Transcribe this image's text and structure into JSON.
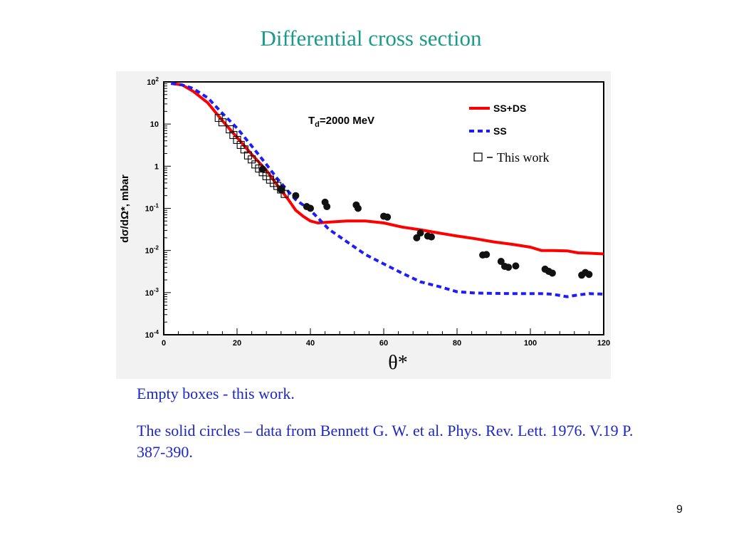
{
  "slide": {
    "title": "Differential  cross section",
    "caption_1": "Empty boxes  - this work.",
    "caption_2": "The solid circles – data from  Bennett G. W. et al. Phys. Rev. Lett. 1976. V.19   P. 387-390.",
    "page_number": "9"
  },
  "chart_data": {
    "type": "scatter",
    "annotation": "T_d=2000 MeV",
    "annotation_main": "T",
    "annotation_sub": "d",
    "annotation_rest": "=2000 MeV",
    "xlabel": "θ*",
    "ylabel": "dσ/dΩ*, mbar",
    "xlim": [
      0,
      120
    ],
    "ylim": [
      0.0001,
      100
    ],
    "y_scale": "log",
    "x_ticks": [
      "0",
      "20",
      "40",
      "60",
      "80",
      "100",
      "120"
    ],
    "y_ticks": [
      {
        "value": 100,
        "base": "10",
        "exp": "2"
      },
      {
        "value": 10,
        "base": "10",
        "exp": ""
      },
      {
        "value": 1,
        "base": "1",
        "exp": ""
      },
      {
        "value": 0.1,
        "base": "10",
        "exp": "-1"
      },
      {
        "value": 0.01,
        "base": "10",
        "exp": "-2"
      },
      {
        "value": 0.001,
        "base": "10",
        "exp": "-3"
      },
      {
        "value": 0.0001,
        "base": "10",
        "exp": "-4"
      }
    ],
    "legend_position": "top-right",
    "colors": {
      "ss_ds": "#ff0000",
      "ss": "#1c1cff",
      "points": "#111111"
    },
    "series": [
      {
        "name": "SS+DS",
        "style": "solid-line",
        "x": [
          2,
          5,
          8,
          12,
          16,
          20,
          24,
          28,
          31,
          34,
          36,
          38,
          40,
          42,
          45,
          50,
          55,
          60,
          65,
          70,
          75,
          80,
          85,
          90,
          95,
          100,
          103,
          106,
          110,
          113,
          116,
          120
        ],
        "y": [
          92,
          85,
          60,
          32,
          12,
          4.8,
          1.9,
          0.8,
          0.35,
          0.16,
          0.09,
          0.065,
          0.05,
          0.045,
          0.047,
          0.05,
          0.05,
          0.045,
          0.036,
          0.031,
          0.026,
          0.022,
          0.019,
          0.016,
          0.014,
          0.012,
          0.01,
          0.01,
          0.0098,
          0.0088,
          0.0086,
          0.0083
        ]
      },
      {
        "name": "SS",
        "style": "dashed-line",
        "x": [
          2,
          5,
          8,
          12,
          16,
          20,
          24,
          28,
          31,
          34,
          36,
          40,
          42,
          45,
          50,
          55,
          60,
          65,
          70,
          75,
          80,
          85,
          90,
          95,
          100,
          103,
          106,
          110,
          113,
          116,
          120
        ],
        "y": [
          92,
          85,
          70,
          42,
          18,
          8,
          3,
          1.1,
          0.5,
          0.25,
          0.16,
          0.09,
          0.06,
          0.032,
          0.016,
          0.008,
          0.0048,
          0.0029,
          0.0018,
          0.0014,
          0.00105,
          0.00098,
          0.00096,
          0.00095,
          0.00095,
          0.00095,
          0.00092,
          0.0008,
          0.00088,
          0.00095,
          0.00092
        ]
      },
      {
        "name": "This work",
        "style": "open-square",
        "x": [
          15,
          16,
          18,
          19,
          20,
          21,
          22,
          23,
          24,
          25,
          26,
          27,
          28,
          29,
          30,
          31,
          32,
          33
        ],
        "y": [
          14,
          11,
          7.5,
          5.5,
          4.2,
          3.2,
          2.5,
          1.8,
          1.45,
          1.1,
          0.88,
          0.72,
          0.58,
          0.48,
          0.4,
          0.34,
          0.28,
          0.22
        ]
      },
      {
        "name": "Bennett et al. 1976",
        "style": "solid-circle",
        "x": [
          27,
          32,
          36,
          39,
          40,
          44,
          44.5,
          52.5,
          53,
          60,
          61,
          69,
          70,
          72,
          73,
          87,
          88,
          92,
          93,
          94,
          96,
          104,
          105,
          106,
          114,
          115,
          116
        ],
        "y": [
          0.85,
          0.28,
          0.2,
          0.11,
          0.1,
          0.14,
          0.11,
          0.12,
          0.1,
          0.065,
          0.062,
          0.02,
          0.026,
          0.022,
          0.021,
          0.0078,
          0.008,
          0.0055,
          0.0042,
          0.004,
          0.0043,
          0.0036,
          0.0032,
          0.0029,
          0.0026,
          0.003,
          0.0027
        ]
      }
    ],
    "legend": [
      {
        "label": "SS+DS",
        "style": "solid-line"
      },
      {
        "label": "SS",
        "style": "dashed-line"
      },
      {
        "label": "This work",
        "style": "open-square"
      }
    ]
  }
}
